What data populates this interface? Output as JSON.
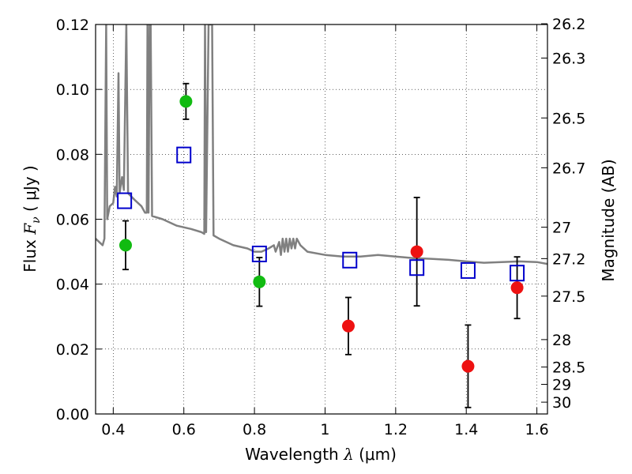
{
  "chart_data": {
    "type": "scatter",
    "xlabel": {
      "text": "Wavelength",
      "symbol": "λ",
      "unit": "(μm)"
    },
    "ylabel": {
      "text": "Flux",
      "symbol": "F",
      "subscript": "ν",
      "unit": "( μJy )"
    },
    "y2label": "Magnitude (AB)",
    "xlim": [
      0.35,
      1.63
    ],
    "ylim": [
      0.0,
      0.12
    ],
    "grid": true,
    "xticks": [
      0.4,
      0.6,
      0.8,
      1.0,
      1.2,
      1.4,
      1.6
    ],
    "xtick_labels": [
      "0.4",
      "0.6",
      "0.8",
      "1",
      "1.2",
      "1.4",
      "1.6"
    ],
    "yticks": [
      0.0,
      0.02,
      0.04,
      0.06,
      0.08,
      0.1,
      0.12
    ],
    "ytick_labels": [
      "0.00",
      "0.02",
      "0.04",
      "0.06",
      "0.08",
      "0.10",
      "0.12"
    ],
    "right_ticks": [
      {
        "label": "26.2",
        "mag": 26.2
      },
      {
        "label": "26.3",
        "mag": 26.3
      },
      {
        "label": "26.5",
        "mag": 26.5
      },
      {
        "label": "26.7",
        "mag": 26.7
      },
      {
        "label": "27",
        "mag": 27.0
      },
      {
        "label": "27.2",
        "mag": 27.2
      },
      {
        "label": "27.5",
        "mag": 27.5
      },
      {
        "label": "28",
        "mag": 28.0
      },
      {
        "label": "28.5",
        "mag": 28.5
      },
      {
        "label": "29",
        "mag": 29.0
      },
      {
        "label": "30",
        "mag": 30.0
      }
    ],
    "series": [
      {
        "name": "detections (green)",
        "marker": "circle",
        "color": "#11bb11",
        "points": [
          {
            "x": 0.435,
            "y": 0.052,
            "err": 0.0075
          },
          {
            "x": 0.606,
            "y": 0.0963,
            "err": 0.0055
          },
          {
            "x": 0.814,
            "y": 0.0407,
            "err": 0.0075
          }
        ]
      },
      {
        "name": "detections (red)",
        "marker": "circle",
        "color": "#ee1111",
        "points": [
          {
            "x": 1.066,
            "y": 0.0271,
            "err": 0.0088
          },
          {
            "x": 1.26,
            "y": 0.05,
            "err": 0.0167
          },
          {
            "x": 1.405,
            "y": 0.0147,
            "err": 0.0127
          },
          {
            "x": 1.544,
            "y": 0.0389,
            "err": 0.0095
          }
        ]
      },
      {
        "name": "model photometry",
        "marker": "square-open",
        "color": "#0000cc",
        "points": [
          {
            "x": 0.432,
            "y": 0.0657
          },
          {
            "x": 0.6,
            "y": 0.0798
          },
          {
            "x": 0.814,
            "y": 0.0493
          },
          {
            "x": 1.07,
            "y": 0.0474
          },
          {
            "x": 1.26,
            "y": 0.0451
          },
          {
            "x": 1.405,
            "y": 0.0442
          },
          {
            "x": 1.544,
            "y": 0.0434
          }
        ]
      },
      {
        "name": "model spectrum",
        "marker": "line",
        "color": "#808080",
        "points": [
          {
            "x": 0.35,
            "y": 0.054
          },
          {
            "x": 0.36,
            "y": 0.053
          },
          {
            "x": 0.37,
            "y": 0.052
          },
          {
            "x": 0.375,
            "y": 0.054
          },
          {
            "x": 0.38,
            "y": 0.12
          },
          {
            "x": 0.383,
            "y": 0.06
          },
          {
            "x": 0.39,
            "y": 0.064
          },
          {
            "x": 0.4,
            "y": 0.065
          },
          {
            "x": 0.405,
            "y": 0.07
          },
          {
            "x": 0.41,
            "y": 0.067
          },
          {
            "x": 0.415,
            "y": 0.105
          },
          {
            "x": 0.418,
            "y": 0.068
          },
          {
            "x": 0.425,
            "y": 0.073
          },
          {
            "x": 0.43,
            "y": 0.069
          },
          {
            "x": 0.437,
            "y": 0.12
          },
          {
            "x": 0.442,
            "y": 0.068
          },
          {
            "x": 0.46,
            "y": 0.066
          },
          {
            "x": 0.48,
            "y": 0.064
          },
          {
            "x": 0.49,
            "y": 0.062
          },
          {
            "x": 0.495,
            "y": 0.062
          },
          {
            "x": 0.497,
            "y": 0.12
          },
          {
            "x": 0.5,
            "y": 0.062
          },
          {
            "x": 0.503,
            "y": 0.12
          },
          {
            "x": 0.506,
            "y": 0.12
          },
          {
            "x": 0.51,
            "y": 0.061
          },
          {
            "x": 0.54,
            "y": 0.06
          },
          {
            "x": 0.58,
            "y": 0.058
          },
          {
            "x": 0.62,
            "y": 0.057
          },
          {
            "x": 0.65,
            "y": 0.056
          },
          {
            "x": 0.658,
            "y": 0.0555
          },
          {
            "x": 0.66,
            "y": 0.12
          },
          {
            "x": 0.663,
            "y": 0.056
          },
          {
            "x": 0.67,
            "y": 0.12
          },
          {
            "x": 0.675,
            "y": 0.12
          },
          {
            "x": 0.68,
            "y": 0.12
          },
          {
            "x": 0.684,
            "y": 0.055
          },
          {
            "x": 0.7,
            "y": 0.054
          },
          {
            "x": 0.74,
            "y": 0.052
          },
          {
            "x": 0.78,
            "y": 0.051
          },
          {
            "x": 0.8,
            "y": 0.05
          },
          {
            "x": 0.82,
            "y": 0.05
          },
          {
            "x": 0.84,
            "y": 0.051
          },
          {
            "x": 0.855,
            "y": 0.052
          },
          {
            "x": 0.86,
            "y": 0.05
          },
          {
            "x": 0.87,
            "y": 0.053
          },
          {
            "x": 0.875,
            "y": 0.049
          },
          {
            "x": 0.88,
            "y": 0.054
          },
          {
            "x": 0.885,
            "y": 0.05
          },
          {
            "x": 0.89,
            "y": 0.054
          },
          {
            "x": 0.895,
            "y": 0.05
          },
          {
            "x": 0.9,
            "y": 0.054
          },
          {
            "x": 0.905,
            "y": 0.051
          },
          {
            "x": 0.91,
            "y": 0.054
          },
          {
            "x": 0.915,
            "y": 0.051
          },
          {
            "x": 0.92,
            "y": 0.054
          },
          {
            "x": 0.93,
            "y": 0.052
          },
          {
            "x": 0.95,
            "y": 0.05
          },
          {
            "x": 1.0,
            "y": 0.049
          },
          {
            "x": 1.05,
            "y": 0.0485
          },
          {
            "x": 1.1,
            "y": 0.0485
          },
          {
            "x": 1.15,
            "y": 0.049
          },
          {
            "x": 1.2,
            "y": 0.0485
          },
          {
            "x": 1.25,
            "y": 0.048
          },
          {
            "x": 1.3,
            "y": 0.0478
          },
          {
            "x": 1.35,
            "y": 0.0475
          },
          {
            "x": 1.4,
            "y": 0.047
          },
          {
            "x": 1.45,
            "y": 0.0466
          },
          {
            "x": 1.5,
            "y": 0.0468
          },
          {
            "x": 1.55,
            "y": 0.047
          },
          {
            "x": 1.6,
            "y": 0.0468
          },
          {
            "x": 1.63,
            "y": 0.0462
          }
        ]
      }
    ]
  }
}
